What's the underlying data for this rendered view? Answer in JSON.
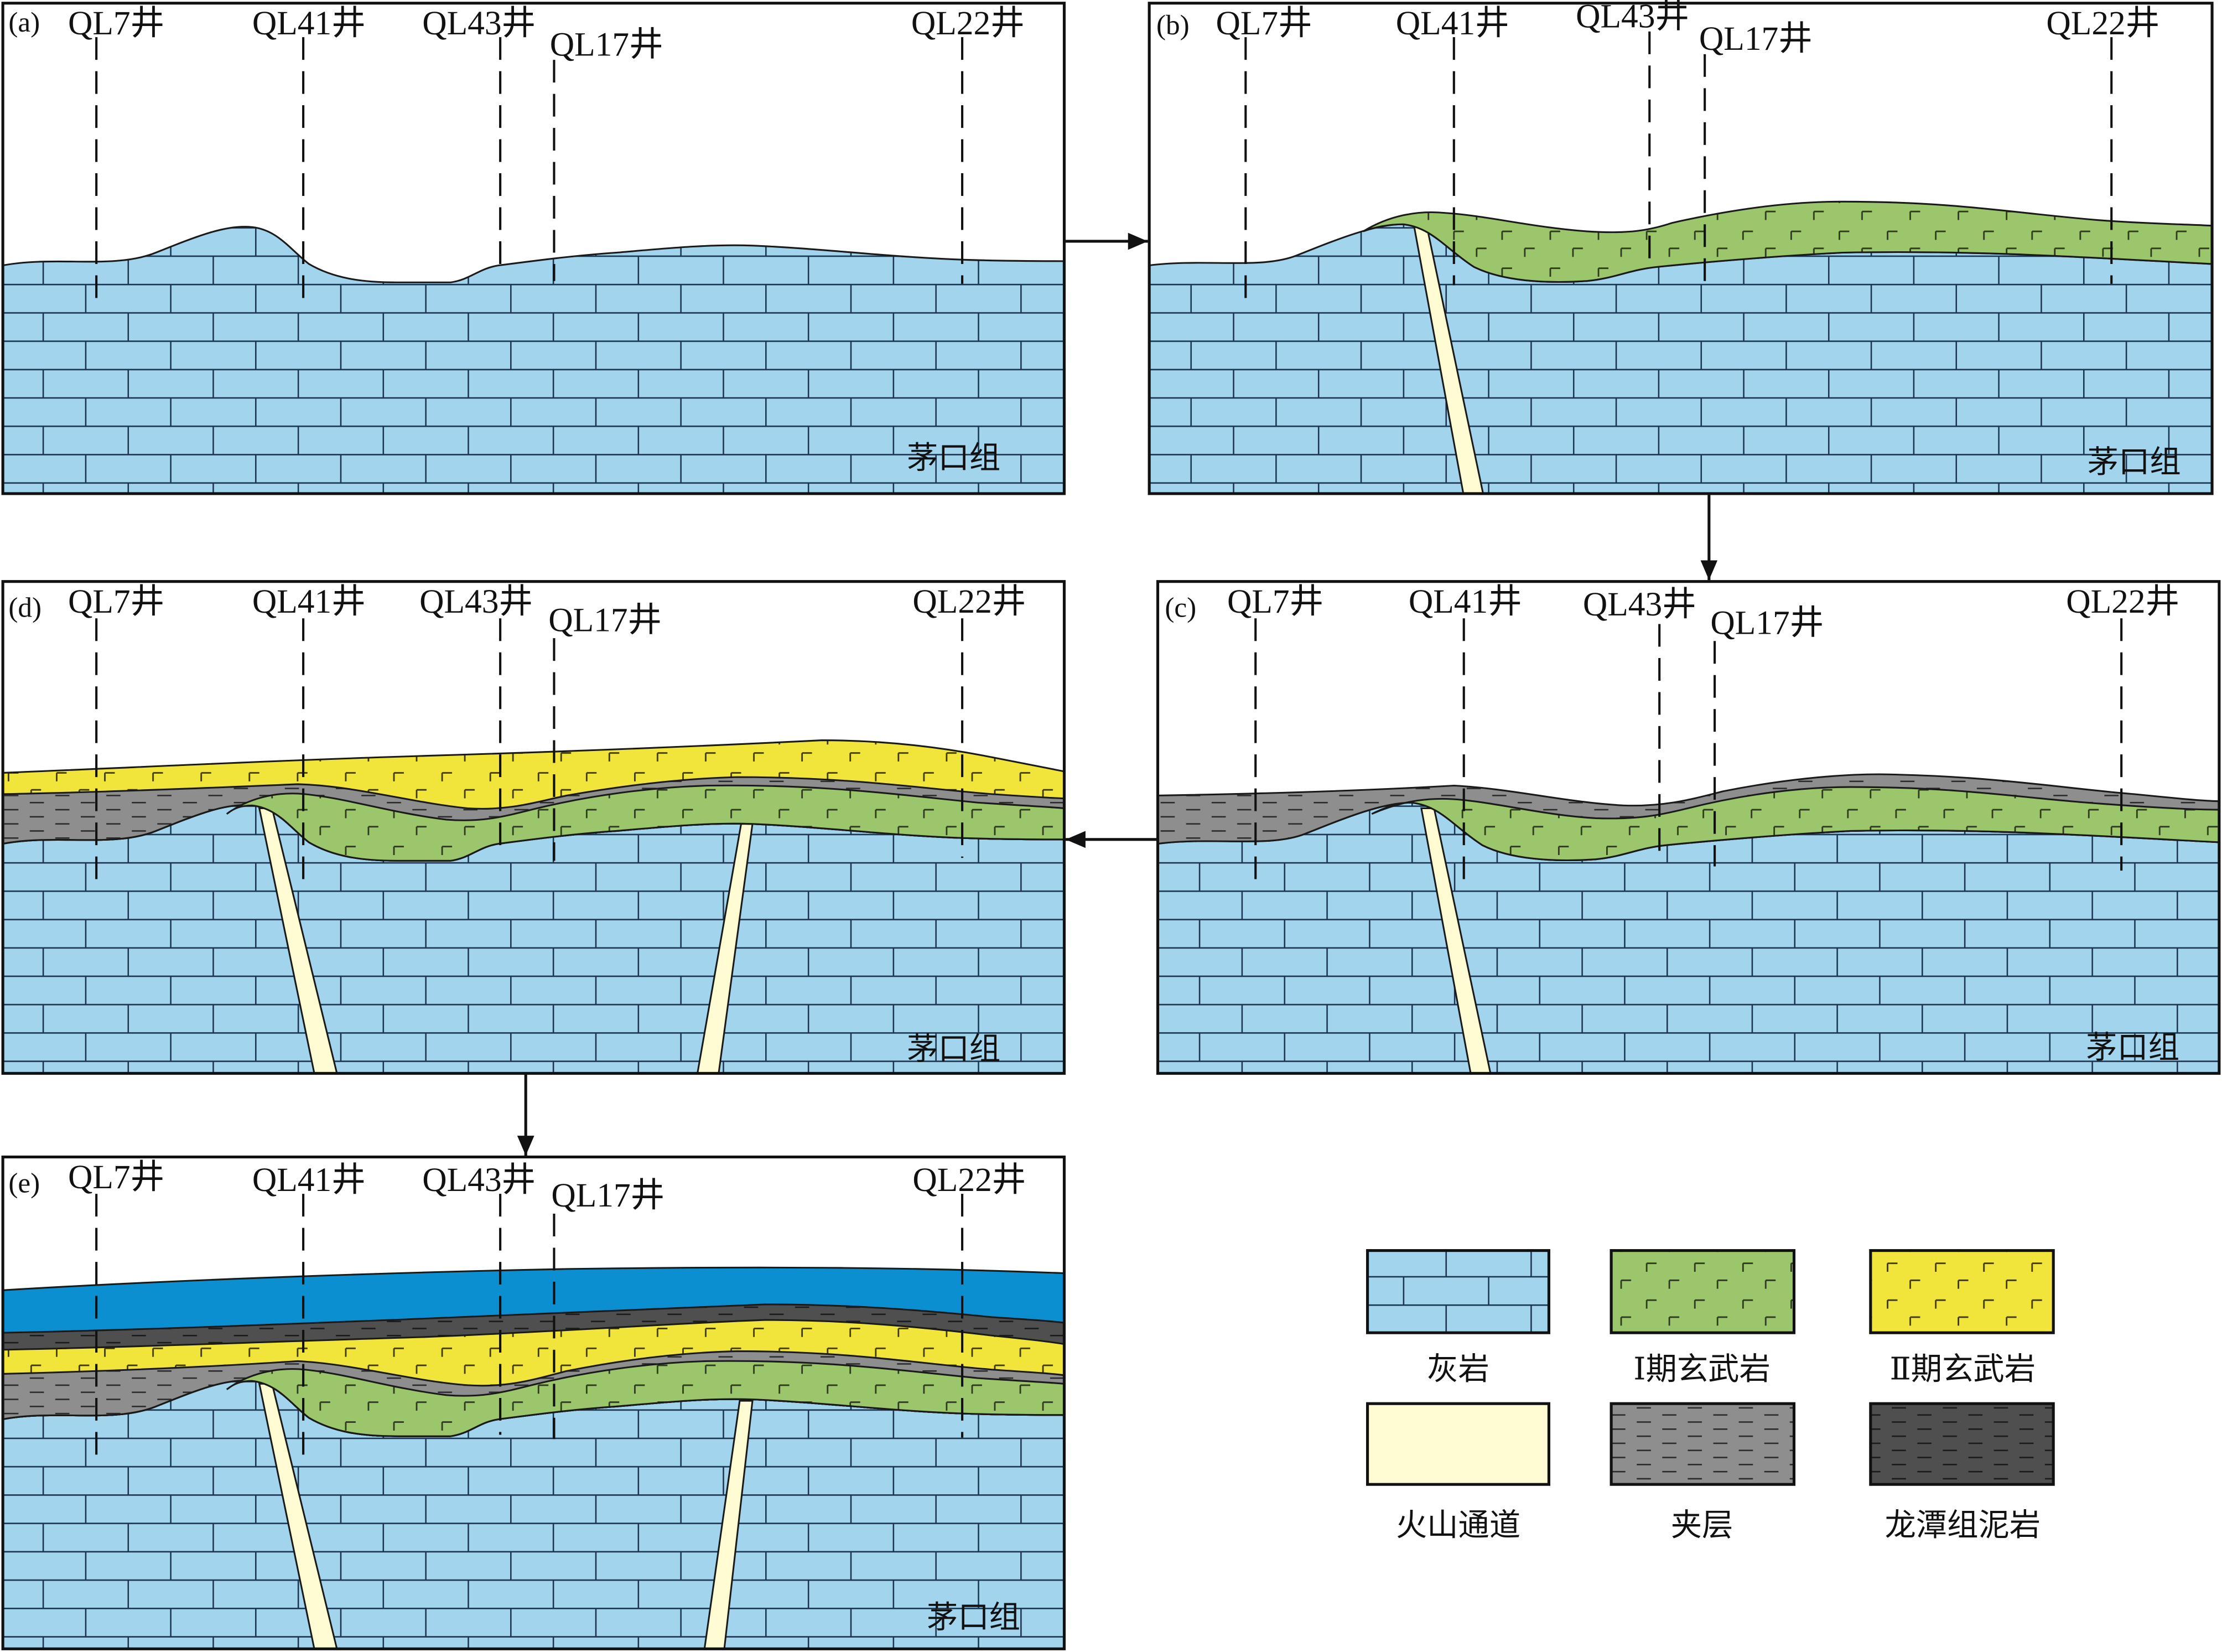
{
  "panels": [
    {
      "label": "(a)",
      "wells": [
        "QL7井",
        "QL41井",
        "QL43井",
        "QL17井",
        "QL22井"
      ],
      "formation": "茅口组"
    },
    {
      "label": "(b)",
      "wells": [
        "QL7井",
        "QL41井",
        "QL43井",
        "QL17井",
        "QL22井"
      ],
      "formation": "茅口组"
    },
    {
      "label": "(c)",
      "wells": [
        "QL7井",
        "QL41井",
        "QL43井",
        "QL17井",
        "QL22井"
      ],
      "formation": "茅口组"
    },
    {
      "label": "(d)",
      "wells": [
        "QL7井",
        "QL41井",
        "QL43井",
        "QL17井",
        "QL22井"
      ],
      "formation": "茅口组"
    },
    {
      "label": "(e)",
      "wells": [
        "QL7井",
        "QL41井",
        "QL43井",
        "QL17井",
        "QL22井"
      ],
      "formation": "茅口组"
    }
  ],
  "legend": [
    {
      "label": "灰岩",
      "pattern": "limestone"
    },
    {
      "label": "Ⅰ期玄武岩",
      "pattern": "basalt-i"
    },
    {
      "label": "Ⅱ期玄武岩",
      "pattern": "basalt-ii"
    },
    {
      "label": "火山通道",
      "pattern": "volcanic-conduit"
    },
    {
      "label": "夹层",
      "pattern": "interlayer"
    },
    {
      "label": "龙潭组泥岩",
      "pattern": "longtan-mudstone"
    }
  ],
  "colors": {
    "limestone": "#a3d4ee",
    "basalt_i": "#9cc66b",
    "basalt_ii": "#f1e53b",
    "volcanic_conduit": "#fffbd2",
    "interlayer": "#8e8e8e",
    "longtan_mudstone": "#4f4f4f",
    "cover": "#0b8fd0"
  }
}
